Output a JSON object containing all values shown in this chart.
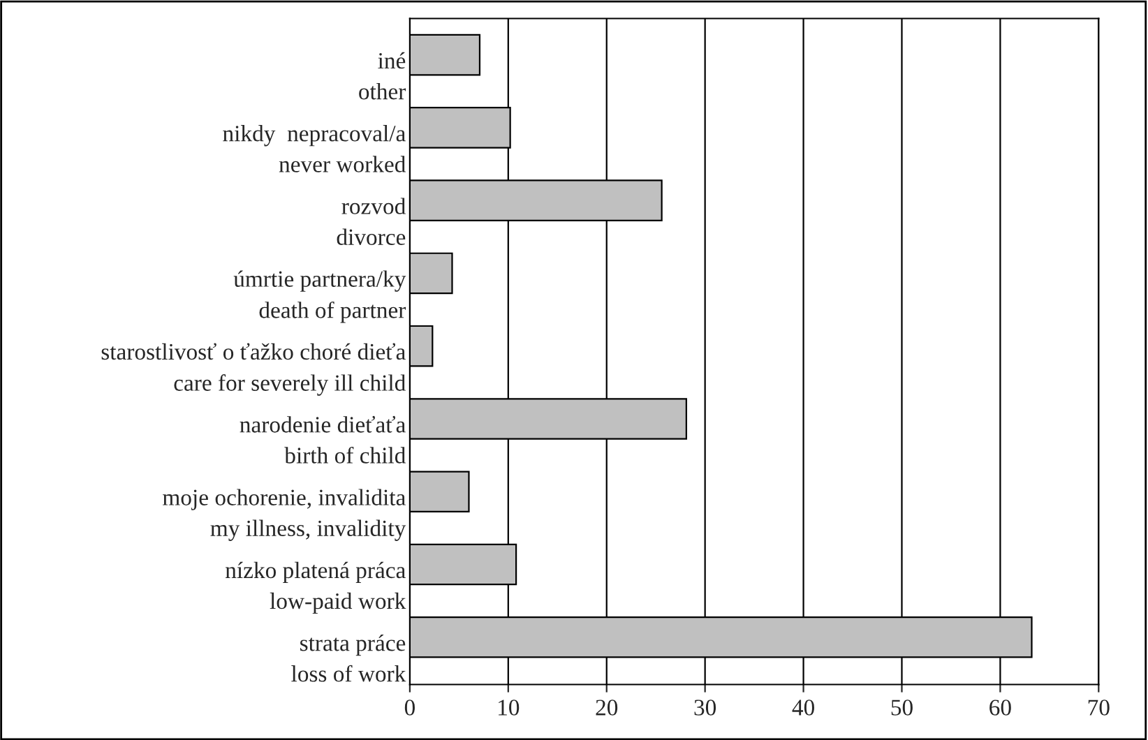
{
  "chart_data": {
    "type": "bar",
    "orientation": "horizontal",
    "categories": [
      "iné\nother",
      "nikdy  nepracoval/a\nnever worked",
      "rozvod\ndivorce",
      "úmrtie partnera/ky\ndeath of partner",
      "starostlivosť o ťažko choré dieťa\ncare for severely ill child",
      "narodenie dieťaťa\nbirth of child",
      "moje ochorenie, invalidita\nmy illness, invalidity",
      "nízko platená práca\nlow-paid work",
      "strata práce\nloss of work"
    ],
    "values": [
      7.1,
      10.2,
      25.6,
      4.3,
      2.3,
      28.1,
      6.0,
      10.8,
      63.2
    ],
    "color": "#c0c0c0",
    "xlim": [
      0,
      70
    ],
    "xticks": [
      0,
      10,
      20,
      30,
      40,
      50,
      60,
      70
    ],
    "grid": "x",
    "legend": false
  }
}
